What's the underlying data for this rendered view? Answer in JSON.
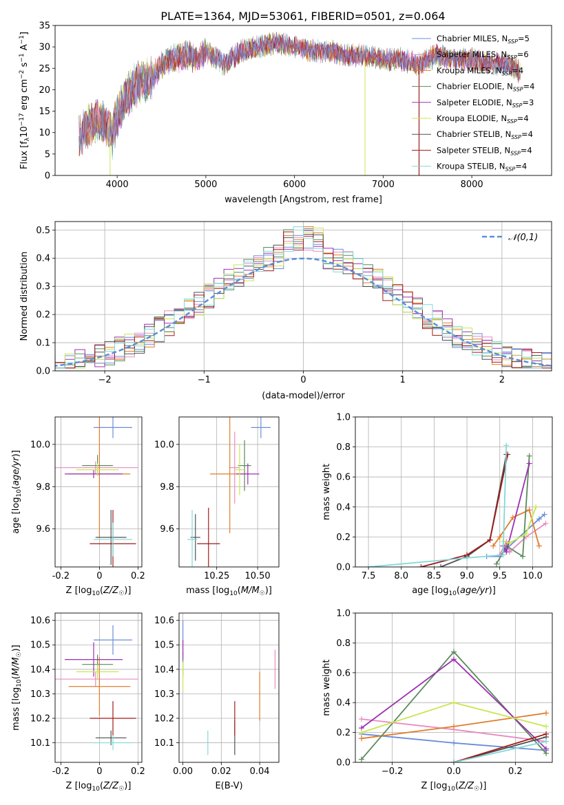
{
  "colors": {
    "Chabrier MILES": "#6a8cd8",
    "Salpeter MILES": "#e88abf",
    "Kroupa MILES": "#e07b2a",
    "Chabrier ELODIE": "#5a8a5a",
    "Salpeter ELODIE": "#9b30b0",
    "Kroupa ELODIE": "#c8e650",
    "Chabrier STELIB": "#505050",
    "Salpeter STELIB": "#a01818",
    "Kroupa STELIB": "#80d8d8"
  },
  "chart_data": [
    {
      "id": "spectrum",
      "type": "line",
      "title": "PLATE=1364, MJD=53061, FIBERID=0501, z=0.064",
      "xlabel": "wavelength [Angstrom, rest frame]",
      "ylabel": "Flux [f_λ10^-17 erg cm^-2 s^-1 A^-1]",
      "xlim": [
        3300,
        8900
      ],
      "ylim": [
        0,
        35
      ],
      "xticks": [
        4000,
        5000,
        6000,
        7000,
        8000
      ],
      "yticks": [
        0,
        5,
        10,
        15,
        20,
        25,
        30,
        35
      ],
      "legend_position": "top-right",
      "series": [
        {
          "name": "Chabrier MILES",
          "nssp": "5"
        },
        {
          "name": "Salpeter MILES",
          "nssp": "6"
        },
        {
          "name": "Kroupa MILES",
          "nssp": "4"
        },
        {
          "name": "Chabrier ELODIE",
          "nssp": "4"
        },
        {
          "name": "Salpeter ELODIE",
          "nssp": "3"
        },
        {
          "name": "Kroupa ELODIE",
          "nssp": "4"
        },
        {
          "name": "Chabrier STELIB",
          "nssp": "4"
        },
        {
          "name": "Salpeter STELIB",
          "nssp": "4"
        },
        {
          "name": "Kroupa STELIB",
          "nssp": "4"
        }
      ],
      "shape": {
        "x": [
          3570,
          3650,
          3700,
          3800,
          3880,
          3950,
          4000,
          4100,
          4200,
          4300,
          4400,
          4500,
          4600,
          4700,
          4800,
          4900,
          5000,
          5200,
          5400,
          5600,
          5800,
          6000,
          6200,
          6400,
          6600,
          6800,
          7000,
          7200,
          7400,
          7600,
          7800,
          8000,
          8200,
          8400,
          8550
        ],
        "y": [
          9,
          11,
          12,
          13,
          12,
          9,
          14,
          18,
          21,
          22,
          23,
          26,
          27,
          27.5,
          28,
          27,
          29,
          26,
          29,
          30,
          31,
          30,
          29,
          29,
          28,
          28,
          27,
          27,
          26,
          28,
          27,
          27,
          26,
          26,
          24
        ]
      }
    },
    {
      "id": "residuals",
      "type": "bar",
      "xlabel": "(data-model)/error",
      "ylabel": "Normed distribution",
      "xlim": [
        -2.5,
        2.5
      ],
      "ylim": [
        0,
        0.53
      ],
      "xticks": [
        -2,
        -1,
        0,
        1,
        2
      ],
      "xtick_labels": [
        "−2",
        "−1",
        "0",
        "1",
        "2"
      ],
      "yticks": [
        0.0,
        0.1,
        0.2,
        0.3,
        0.4,
        0.5
      ],
      "bin_width": 0.1,
      "legend": "𝒩(0,1)",
      "legend_position": "top-right"
    },
    {
      "id": "age-vs-Z",
      "type": "scatter",
      "xlabel": "Z [log10(Z/Z☉)]",
      "ylabel": "age  [log10(age/yr)]",
      "xlim": [
        -0.23,
        0.22
      ],
      "ylim": [
        9.42,
        10.13
      ],
      "xticks": [
        -0.2,
        0.0,
        0.2
      ],
      "yticks": [
        9.6,
        9.8,
        10.0
      ],
      "points": [
        {
          "series": "Chabrier MILES",
          "x": 0.07,
          "xerr": 0.1,
          "y": 10.08,
          "yerr": 0.05
        },
        {
          "series": "Salpeter MILES",
          "x": -0.02,
          "xerr": 0.22,
          "y": 9.89,
          "yerr": 0.03
        },
        {
          "series": "Kroupa MILES",
          "x": 0.0,
          "xerr": 0.16,
          "y": 9.86,
          "yerr": 0.3
        },
        {
          "series": "Chabrier ELODIE",
          "x": -0.01,
          "xerr": 0.08,
          "y": 9.9,
          "yerr": 0.05
        },
        {
          "series": "Salpeter ELODIE",
          "x": -0.03,
          "xerr": 0.15,
          "y": 9.86,
          "yerr": 0.02
        },
        {
          "series": "Kroupa ELODIE",
          "x": -0.01,
          "xerr": 0.11,
          "y": 9.88,
          "yerr": 0.03
        },
        {
          "series": "Chabrier STELIB",
          "x": 0.06,
          "xerr": 0.08,
          "y": 9.56,
          "yerr": 0.13
        },
        {
          "series": "Salpeter STELIB",
          "x": 0.07,
          "xerr": 0.12,
          "y": 9.53,
          "yerr": 0.16
        },
        {
          "series": "Kroupa STELIB",
          "x": 0.07,
          "xerr": 0.1,
          "y": 9.55,
          "yerr": 0.08
        }
      ]
    },
    {
      "id": "age-vs-mass",
      "type": "scatter",
      "xlabel": "mass [log10(M/M☉)]",
      "xlim": [
        10.02,
        10.63
      ],
      "ylim": [
        9.42,
        10.13
      ],
      "xticks": [
        10.25,
        10.5
      ],
      "xtick_labels": [
        "10.25",
        "10.50"
      ],
      "yticks": [
        9.6,
        9.8,
        10.0
      ],
      "points": [
        {
          "series": "Chabrier MILES",
          "x": 10.52,
          "xerr": 0.06,
          "y": 10.08,
          "yerr": 0.05
        },
        {
          "series": "Salpeter MILES",
          "x": 10.36,
          "xerr": 0.03,
          "y": 9.89,
          "yerr": 0.17
        },
        {
          "series": "Kroupa MILES",
          "x": 10.33,
          "xerr": 0.12,
          "y": 9.86,
          "yerr": 0.28
        },
        {
          "series": "Chabrier ELODIE",
          "x": 10.42,
          "xerr": 0.04,
          "y": 9.9,
          "yerr": 0.12
        },
        {
          "series": "Salpeter ELODIE",
          "x": 10.44,
          "xerr": 0.07,
          "y": 9.86,
          "yerr": 0.05
        },
        {
          "series": "Kroupa ELODIE",
          "x": 10.39,
          "xerr": 0.03,
          "y": 9.88,
          "yerr": 0.12
        },
        {
          "series": "Chabrier STELIB",
          "x": 10.12,
          "xerr": 0.03,
          "y": 9.56,
          "yerr": 0.11
        },
        {
          "series": "Salpeter STELIB",
          "x": 10.2,
          "xerr": 0.07,
          "y": 9.53,
          "yerr": 0.17
        },
        {
          "series": "Kroupa STELIB",
          "x": 10.1,
          "xerr": 0.03,
          "y": 9.55,
          "yerr": 0.14
        }
      ]
    },
    {
      "id": "mass-weight-vs-age",
      "type": "line",
      "xlabel": "age  [log10(age/yr)]",
      "ylabel": "mass weight",
      "xlim": [
        7.3,
        10.3
      ],
      "ylim": [
        0,
        1.0
      ],
      "xticks": [
        7.5,
        8.0,
        8.5,
        9.0,
        9.5,
        10.0
      ],
      "xtick_labels": [
        "7.5",
        "8.0",
        "8.5",
        "9.0",
        "9.5",
        "10.0"
      ],
      "yticks": [
        0.0,
        0.2,
        0.4,
        0.6,
        0.8,
        1.0
      ],
      "series": [
        {
          "name": "Chabrier MILES",
          "x": [
            9.3,
            9.5,
            9.6,
            10.1,
            10.18
          ],
          "y": [
            0.07,
            0.07,
            0.12,
            0.32,
            0.35
          ]
        },
        {
          "name": "Salpeter MILES",
          "x": [
            9.5,
            9.6,
            9.65,
            9.9,
            10.2
          ],
          "y": [
            0.08,
            0.17,
            0.1,
            0.2,
            0.29
          ]
        },
        {
          "name": "Kroupa MILES",
          "x": [
            9.4,
            9.5,
            9.7,
            9.95,
            10.1
          ],
          "y": [
            0.14,
            0.2,
            0.33,
            0.38,
            0.14
          ]
        },
        {
          "name": "Chabrier ELODIE",
          "x": [
            9.45,
            9.6,
            9.85,
            9.95
          ],
          "y": [
            0.02,
            0.14,
            0.07,
            0.74
          ]
        },
        {
          "name": "Salpeter ELODIE",
          "x": [
            9.55,
            9.6,
            9.95
          ],
          "y": [
            0.14,
            0.1,
            0.69
          ]
        },
        {
          "name": "Kroupa ELODIE",
          "x": [
            9.55,
            9.65,
            9.9,
            10.05
          ],
          "y": [
            0.17,
            0.16,
            0.22,
            0.4
          ]
        },
        {
          "name": "Chabrier STELIB",
          "x": [
            8.6,
            9.0,
            9.35,
            9.6
          ],
          "y": [
            0.0,
            0.07,
            0.18,
            0.75
          ]
        },
        {
          "name": "Salpeter STELIB",
          "x": [
            8.3,
            9.0,
            9.35,
            9.62
          ],
          "y": [
            0.0,
            0.08,
            0.18,
            0.75
          ]
        },
        {
          "name": "Kroupa STELIB",
          "x": [
            7.5,
            9.0,
            9.55,
            9.6
          ],
          "y": [
            0.0,
            0.06,
            0.08,
            0.81
          ]
        }
      ]
    },
    {
      "id": "mass-vs-Z",
      "type": "scatter",
      "xlabel": "Z [log10(Z/Z☉)]",
      "ylabel": "mass [log10(M/M☉)]",
      "xlim": [
        -0.23,
        0.22
      ],
      "ylim": [
        10.02,
        10.63
      ],
      "xticks": [
        -0.2,
        0.0,
        0.2
      ],
      "yticks": [
        10.1,
        10.2,
        10.3,
        10.4,
        10.5,
        10.6
      ],
      "points": [
        {
          "series": "Chabrier MILES",
          "x": 0.07,
          "xerr": 0.1,
          "y": 10.52,
          "yerr": 0.06
        },
        {
          "series": "Salpeter MILES",
          "x": -0.02,
          "xerr": 0.22,
          "y": 10.36,
          "yerr": 0.03
        },
        {
          "series": "Kroupa MILES",
          "x": 0.0,
          "xerr": 0.16,
          "y": 10.33,
          "yerr": 0.12
        },
        {
          "series": "Chabrier ELODIE",
          "x": -0.01,
          "xerr": 0.08,
          "y": 10.42,
          "yerr": 0.04
        },
        {
          "series": "Salpeter ELODIE",
          "x": -0.03,
          "xerr": 0.15,
          "y": 10.44,
          "yerr": 0.07
        },
        {
          "series": "Kroupa ELODIE",
          "x": -0.01,
          "xerr": 0.11,
          "y": 10.39,
          "yerr": 0.03
        },
        {
          "series": "Chabrier STELIB",
          "x": 0.06,
          "xerr": 0.08,
          "y": 10.12,
          "yerr": 0.03
        },
        {
          "series": "Salpeter STELIB",
          "x": 0.07,
          "xerr": 0.12,
          "y": 10.2,
          "yerr": 0.07
        },
        {
          "series": "Kroupa STELIB",
          "x": 0.07,
          "xerr": 0.1,
          "y": 10.1,
          "yerr": 0.03
        }
      ]
    },
    {
      "id": "mass-vs-ebv",
      "type": "scatter",
      "xlabel": "E(B-V)",
      "xlim": [
        -0.002,
        0.05
      ],
      "ylim": [
        10.02,
        10.63
      ],
      "xticks": [
        0.0,
        0.02,
        0.04
      ],
      "xtick_labels": [
        "0.00",
        "0.02",
        "0.04"
      ],
      "yticks": [
        10.1,
        10.2,
        10.3,
        10.4,
        10.5,
        10.6
      ],
      "points": [
        {
          "series": "Chabrier MILES",
          "x": 0.0,
          "y": 10.53,
          "yerr": 0.07
        },
        {
          "series": "Salpeter MILES",
          "x": 0.048,
          "y": 10.4,
          "yerr": 0.08
        },
        {
          "series": "Kroupa MILES",
          "x": 0.04,
          "y": 10.29,
          "yerr": 0.1
        },
        {
          "series": "Chabrier ELODIE",
          "x": 0.0,
          "y": 10.42,
          "yerr": 0.05
        },
        {
          "series": "Salpeter ELODIE",
          "x": 0.0,
          "y": 10.48,
          "yerr": 0.04
        },
        {
          "series": "Kroupa ELODIE",
          "x": 0.0,
          "y": 10.37,
          "yerr": 0.06
        },
        {
          "series": "Chabrier STELIB",
          "x": 0.027,
          "y": 10.12,
          "yerr": 0.07
        },
        {
          "series": "Salpeter STELIB",
          "x": 0.027,
          "y": 10.2,
          "yerr": 0.07
        },
        {
          "series": "Kroupa STELIB",
          "x": 0.013,
          "y": 10.1,
          "yerr": 0.05
        }
      ]
    },
    {
      "id": "mass-weight-vs-Z",
      "type": "line",
      "xlabel": "Z [log10(Z/Z☉)]",
      "ylabel": "mass weight",
      "xlim": [
        -0.32,
        0.32
      ],
      "ylim": [
        0,
        1.0
      ],
      "xticks": [
        -0.2,
        0.0,
        0.2
      ],
      "xtick_labels": [
        "−0.2",
        "0.0",
        "0.2"
      ],
      "yticks": [
        0.0,
        0.2,
        0.4,
        0.6,
        0.8,
        1.0
      ],
      "series": [
        {
          "name": "Chabrier MILES",
          "x": [
            -0.3,
            0.0,
            0.3
          ],
          "y": [
            0.19,
            0.13,
            0.08
          ]
        },
        {
          "name": "Salpeter MILES",
          "x": [
            -0.3,
            0.0,
            0.3
          ],
          "y": [
            0.29,
            0.22,
            0.14
          ]
        },
        {
          "name": "Kroupa MILES",
          "x": [
            -0.3,
            0.0,
            0.3
          ],
          "y": [
            0.16,
            0.24,
            0.33
          ]
        },
        {
          "name": "Chabrier ELODIE",
          "x": [
            -0.3,
            0.0,
            0.3
          ],
          "y": [
            0.02,
            0.74,
            0.06
          ]
        },
        {
          "name": "Salpeter ELODIE",
          "x": [
            -0.3,
            0.0,
            0.3
          ],
          "y": [
            0.23,
            0.69,
            0.09
          ]
        },
        {
          "name": "Kroupa ELODIE",
          "x": [
            -0.3,
            0.0,
            0.3
          ],
          "y": [
            0.2,
            0.4,
            0.24
          ]
        },
        {
          "name": "Chabrier STELIB",
          "x": [
            0.0,
            0.3
          ],
          "y": [
            0.0,
            0.17
          ]
        },
        {
          "name": "Salpeter STELIB",
          "x": [
            0.0,
            0.3
          ],
          "y": [
            0.0,
            0.19
          ]
        },
        {
          "name": "Kroupa STELIB",
          "x": [
            0.0,
            0.3
          ],
          "y": [
            0.0,
            0.14
          ]
        }
      ]
    }
  ]
}
